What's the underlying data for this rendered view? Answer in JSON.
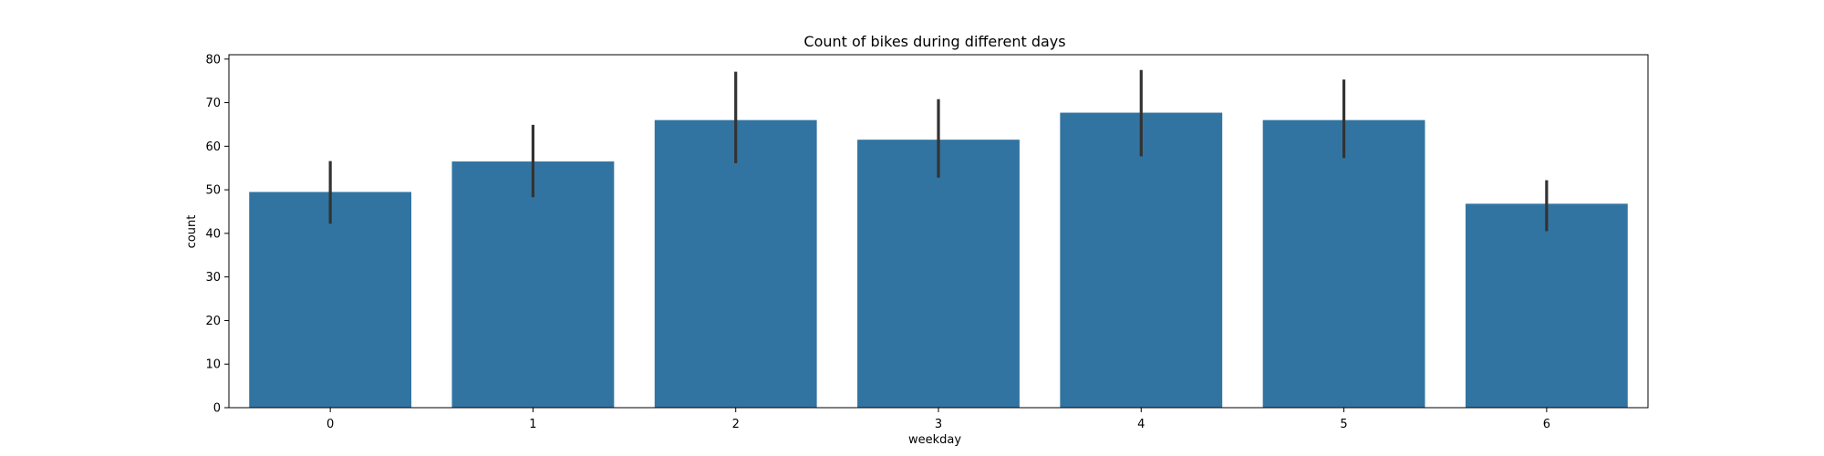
{
  "chart_data": {
    "type": "bar",
    "title": "Count of bikes during different days",
    "xlabel": "weekday",
    "ylabel": "count",
    "categories": [
      "0",
      "1",
      "2",
      "3",
      "4",
      "5",
      "6"
    ],
    "values": [
      49.5,
      56.5,
      66.0,
      61.5,
      67.7,
      66.0,
      46.8
    ],
    "error_low": [
      42.2,
      48.3,
      56.1,
      52.8,
      57.7,
      57.3,
      40.5
    ],
    "error_high": [
      56.6,
      64.9,
      77.1,
      70.8,
      77.5,
      75.3,
      52.2
    ],
    "ylim": [
      0,
      81
    ],
    "yticks": [
      0,
      10,
      20,
      30,
      40,
      50,
      60,
      70,
      80
    ],
    "bar_color": "#3274a1",
    "error_color": "#333333",
    "grid": false,
    "legend": "none"
  }
}
